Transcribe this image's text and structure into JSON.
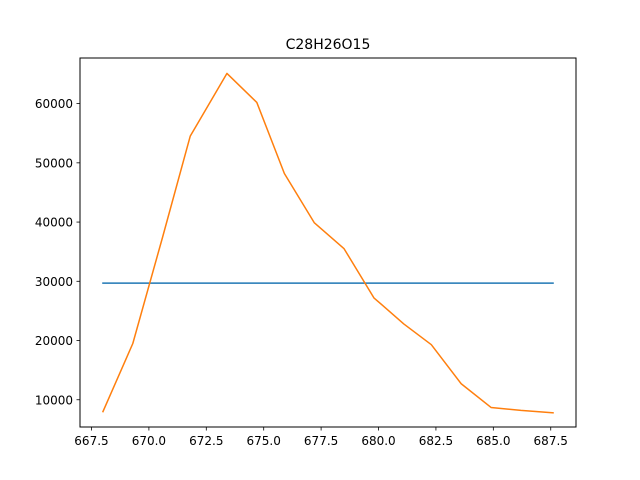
{
  "chart_data": {
    "type": "line",
    "title": "C28H26O15",
    "xlabel": "",
    "ylabel": "",
    "xlim": [
      667.0,
      688.6
    ],
    "ylim": [
      5400,
      67700
    ],
    "x_ticks": [
      667.5,
      670.0,
      672.5,
      675.0,
      677.5,
      680.0,
      682.5,
      685.0,
      687.5
    ],
    "x_tick_labels": [
      "667.5",
      "670.0",
      "672.5",
      "675.0",
      "677.5",
      "680.0",
      "682.5",
      "685.0",
      "687.5"
    ],
    "y_ticks": [
      10000,
      20000,
      30000,
      40000,
      50000,
      60000
    ],
    "y_tick_labels": [
      "10000",
      "20000",
      "30000",
      "40000",
      "50000",
      "60000"
    ],
    "grid": false,
    "legend": "none",
    "series": [
      {
        "color": "#1f77b4",
        "x": [
          668.0,
          687.6
        ],
        "y": [
          29700,
          29700
        ]
      },
      {
        "color": "#ff7f0e",
        "x": [
          668.0,
          669.3,
          670.6,
          671.8,
          673.4,
          674.7,
          675.9,
          677.2,
          678.5,
          679.8,
          681.1,
          682.3,
          683.6,
          684.9,
          686.2,
          687.6
        ],
        "y": [
          8000,
          19500,
          37500,
          54500,
          65100,
          60200,
          48200,
          39900,
          35500,
          27200,
          22800,
          19300,
          12700,
          8700,
          8200,
          7800
        ]
      }
    ]
  }
}
